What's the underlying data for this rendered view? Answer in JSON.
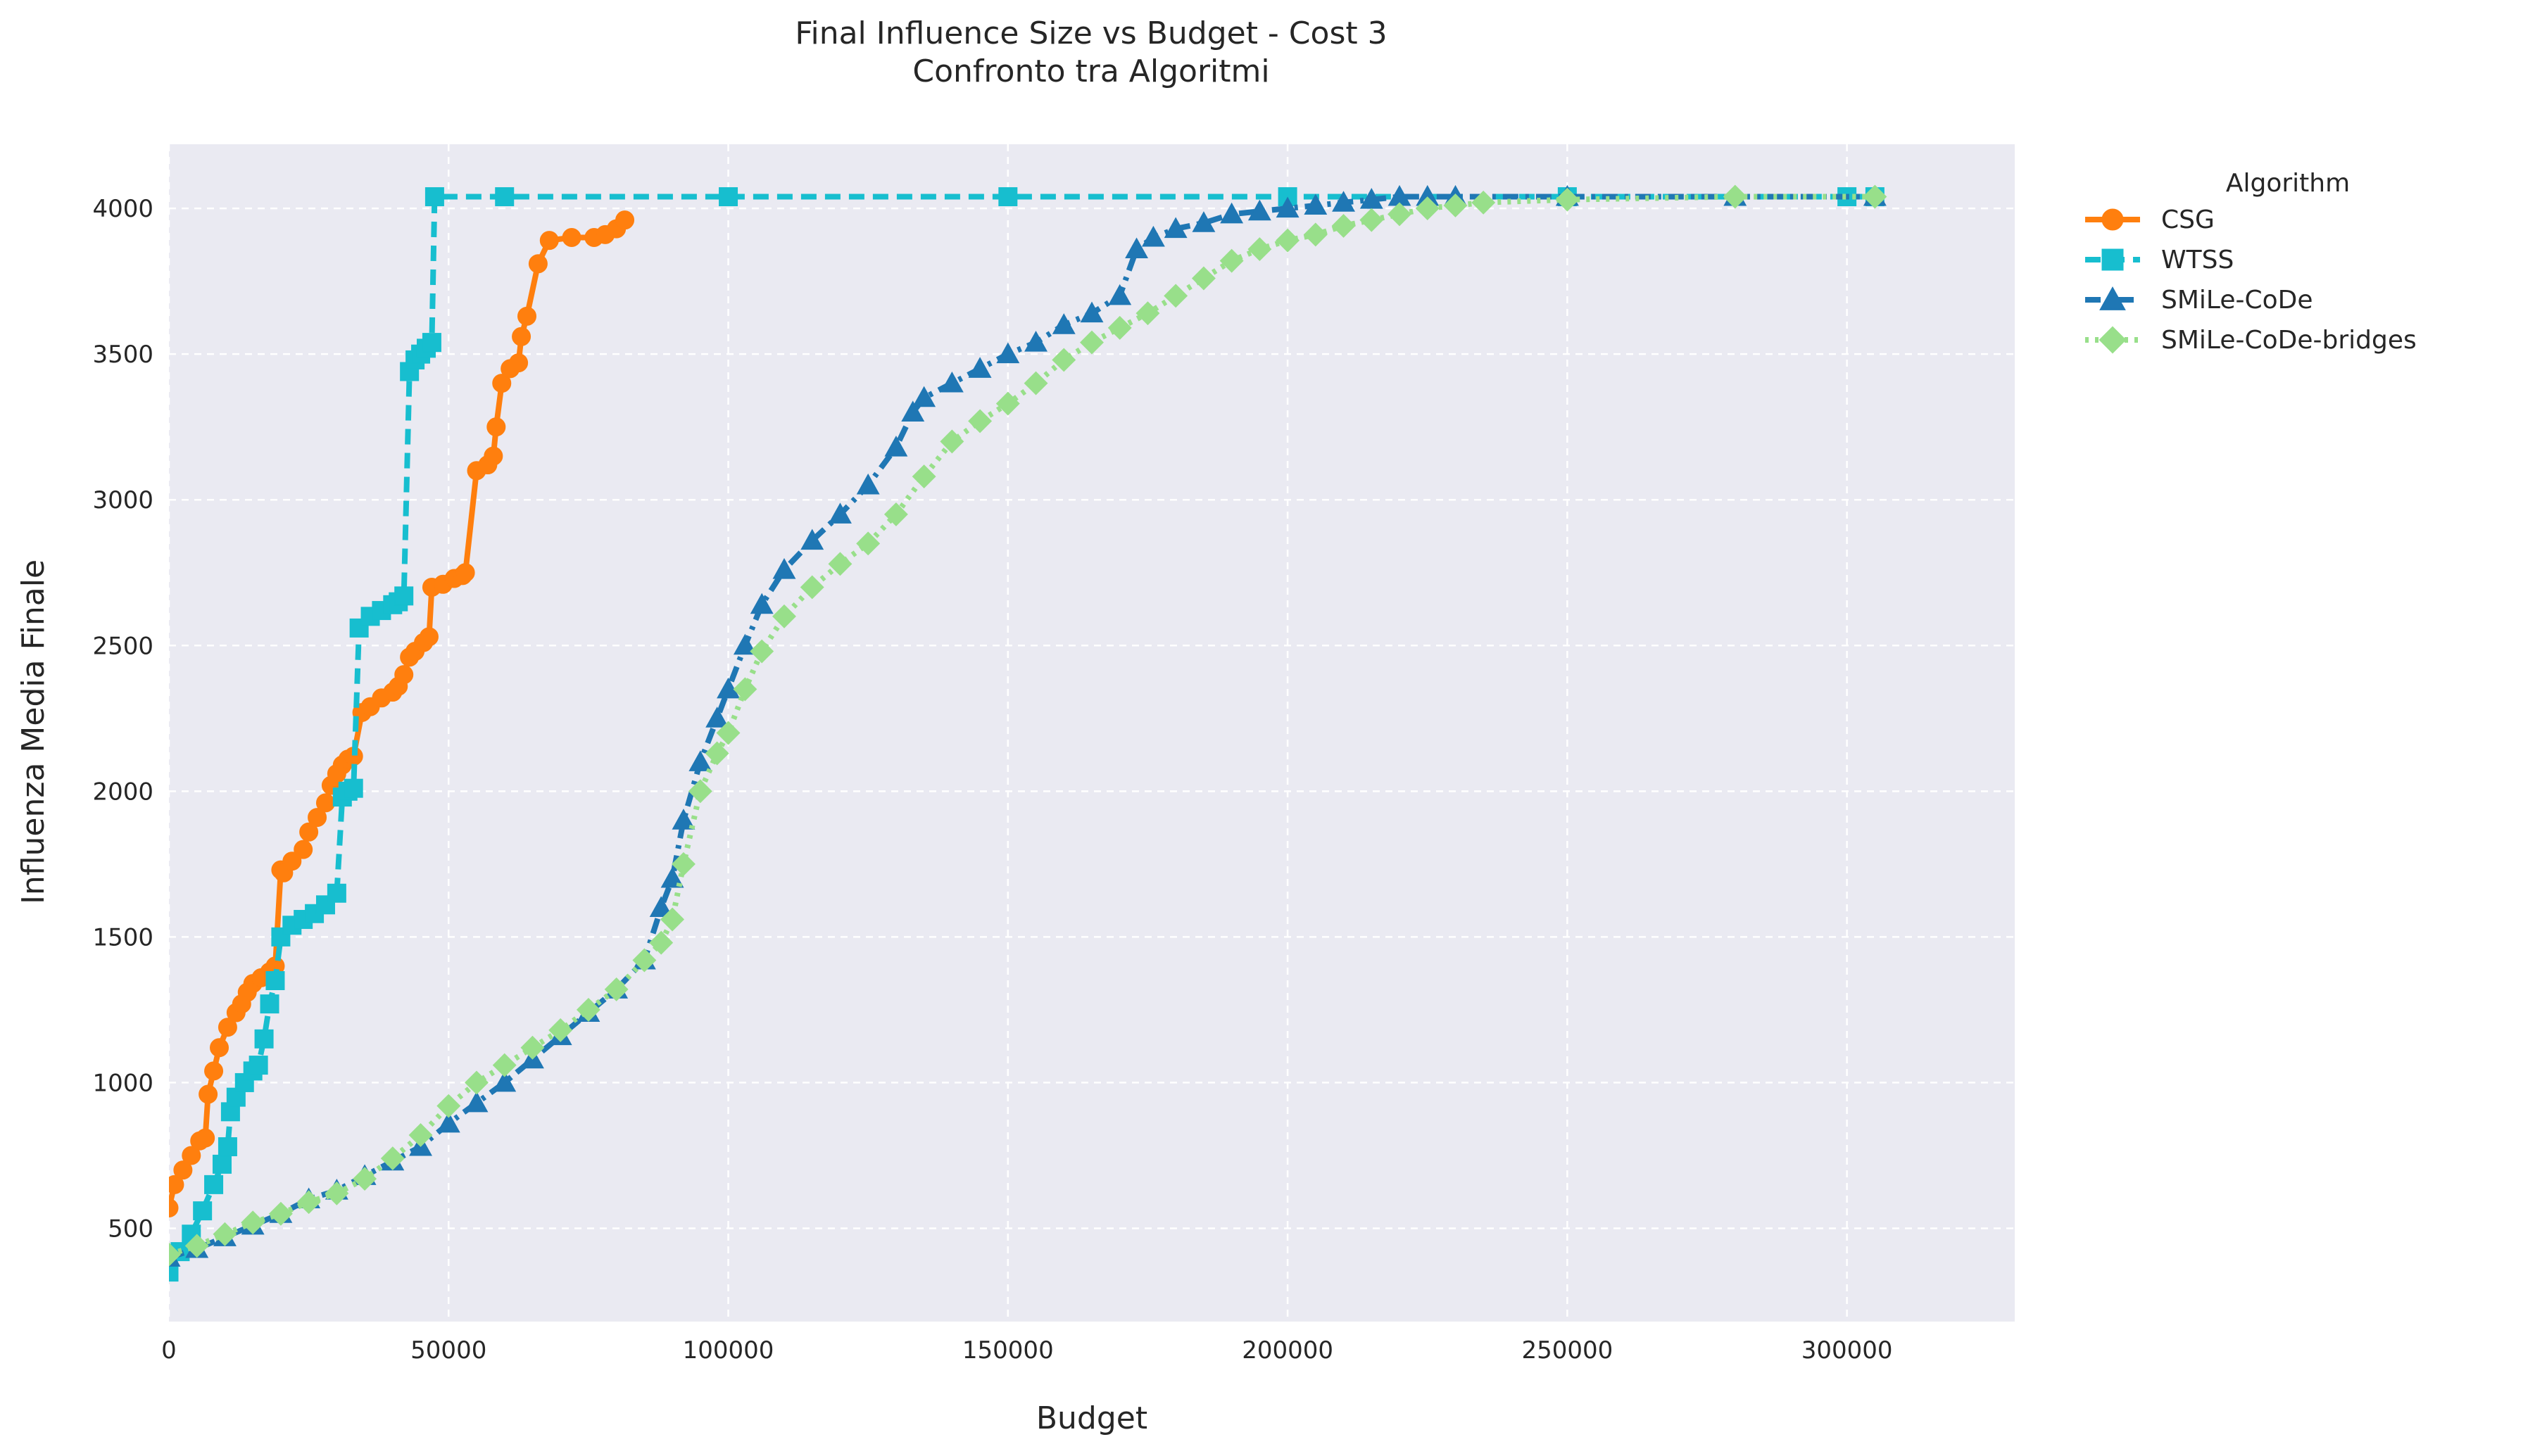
{
  "chart_data": {
    "type": "line",
    "title": "Final Influence Size vs Budget - Cost 3",
    "subtitle": "Confronto tra Algoritmi",
    "xlabel": "Budget",
    "ylabel": "Influenza Media Finale",
    "xlim": [
      0,
      330000
    ],
    "ylim": [
      180,
      4220
    ],
    "xticks": [
      0,
      50000,
      100000,
      150000,
      200000,
      250000,
      300000
    ],
    "yticks": [
      500,
      1000,
      1500,
      2000,
      2500,
      3000,
      3500,
      4000
    ],
    "grid": true,
    "legend": {
      "title": "Algorithm",
      "position": "outside-top-right"
    },
    "series": [
      {
        "name": "CSG",
        "color": "#ff7f0e",
        "marker": "circle",
        "linestyle": "solid",
        "x": [
          0,
          1000,
          2500,
          4000,
          5500,
          6500,
          7000,
          8000,
          9000,
          10500,
          12000,
          13000,
          14000,
          15000,
          16500,
          18000,
          19000,
          20000,
          20500,
          22000,
          24000,
          25000,
          26500,
          28000,
          29000,
          30000,
          31000,
          32000,
          33000,
          34500,
          36000,
          38000,
          40000,
          41000,
          42000,
          43000,
          44000,
          45500,
          46500,
          47000,
          49000,
          51000,
          52500,
          53000,
          55000,
          57000,
          58000,
          58500,
          59500,
          61000,
          62500,
          63000,
          64000,
          66000,
          68000,
          72000,
          76000,
          78000,
          80000,
          81500
        ],
        "y": [
          570,
          650,
          700,
          750,
          800,
          810,
          960,
          1040,
          1120,
          1190,
          1240,
          1270,
          1310,
          1340,
          1360,
          1380,
          1400,
          1730,
          1720,
          1760,
          1800,
          1860,
          1910,
          1960,
          2020,
          2060,
          2090,
          2110,
          2120,
          2270,
          2290,
          2320,
          2340,
          2360,
          2400,
          2460,
          2480,
          2510,
          2530,
          2700,
          2710,
          2730,
          2740,
          2750,
          3100,
          3120,
          3150,
          3250,
          3400,
          3450,
          3470,
          3560,
          3630,
          3810,
          3890,
          3900,
          3900,
          3910,
          3930,
          3960
        ]
      },
      {
        "name": "WTSS",
        "color": "#17becf",
        "marker": "square",
        "linestyle": "dashed",
        "x": [
          0,
          2000,
          4000,
          6000,
          8000,
          9500,
          10500,
          11000,
          12000,
          13500,
          15000,
          16000,
          17000,
          18000,
          19000,
          20000,
          22000,
          24000,
          26000,
          28000,
          30000,
          31000,
          32000,
          33000,
          34000,
          36000,
          38000,
          40000,
          41000,
          42000,
          43000,
          44000,
          45000,
          46000,
          47000,
          47500,
          60000,
          100000,
          150000,
          200000,
          250000,
          300000,
          305000
        ],
        "y": [
          350,
          420,
          480,
          560,
          650,
          720,
          780,
          900,
          950,
          1000,
          1040,
          1060,
          1150,
          1270,
          1350,
          1500,
          1540,
          1560,
          1580,
          1610,
          1650,
          1980,
          2000,
          2010,
          2560,
          2600,
          2620,
          2640,
          2650,
          2670,
          3440,
          3480,
          3500,
          3520,
          3540,
          4040,
          4040,
          4040,
          4040,
          4040,
          4040,
          4040,
          4040
        ]
      },
      {
        "name": "SMiLe-CoDe",
        "color": "#1f77b4",
        "marker": "triangle",
        "linestyle": "dashdot",
        "x": [
          0,
          5000,
          10000,
          15000,
          20000,
          25000,
          30000,
          35000,
          40000,
          45000,
          50000,
          55000,
          60000,
          65000,
          70000,
          75000,
          80000,
          85000,
          88000,
          90000,
          92000,
          95000,
          98000,
          100000,
          103000,
          106000,
          110000,
          115000,
          120000,
          125000,
          130000,
          133000,
          135000,
          140000,
          145000,
          150000,
          155000,
          160000,
          165000,
          170000,
          173000,
          176000,
          180000,
          185000,
          190000,
          195000,
          200000,
          205000,
          210000,
          215000,
          220000,
          225000,
          230000,
          250000,
          280000,
          305000
        ],
        "y": [
          400,
          430,
          470,
          510,
          550,
          600,
          630,
          680,
          730,
          780,
          860,
          930,
          1000,
          1080,
          1160,
          1240,
          1320,
          1420,
          1600,
          1700,
          1900,
          2100,
          2250,
          2350,
          2500,
          2640,
          2760,
          2860,
          2950,
          3050,
          3180,
          3300,
          3350,
          3400,
          3450,
          3500,
          3540,
          3600,
          3640,
          3700,
          3860,
          3900,
          3930,
          3950,
          3980,
          3990,
          4000,
          4010,
          4020,
          4030,
          4040,
          4040,
          4040,
          4040,
          4040,
          4040
        ]
      },
      {
        "name": "SMiLe-CoDe-bridges",
        "color": "#98df8a",
        "marker": "diamond",
        "linestyle": "dotted",
        "x": [
          0,
          5000,
          10000,
          15000,
          20000,
          25000,
          30000,
          35000,
          40000,
          45000,
          50000,
          55000,
          60000,
          65000,
          70000,
          75000,
          80000,
          85000,
          88000,
          90000,
          92000,
          95000,
          98000,
          100000,
          103000,
          106000,
          110000,
          115000,
          120000,
          125000,
          130000,
          135000,
          140000,
          145000,
          150000,
          155000,
          160000,
          165000,
          170000,
          175000,
          180000,
          185000,
          190000,
          195000,
          200000,
          205000,
          210000,
          215000,
          220000,
          225000,
          230000,
          235000,
          250000,
          280000,
          305000
        ],
        "y": [
          410,
          440,
          480,
          520,
          550,
          590,
          620,
          670,
          740,
          820,
          920,
          1000,
          1060,
          1120,
          1180,
          1250,
          1320,
          1420,
          1480,
          1560,
          1750,
          2000,
          2130,
          2200,
          2350,
          2480,
          2600,
          2700,
          2780,
          2850,
          2950,
          3080,
          3200,
          3270,
          3330,
          3400,
          3480,
          3540,
          3590,
          3640,
          3700,
          3760,
          3820,
          3860,
          3890,
          3910,
          3940,
          3960,
          3980,
          4000,
          4010,
          4020,
          4030,
          4040,
          4040
        ]
      }
    ]
  }
}
